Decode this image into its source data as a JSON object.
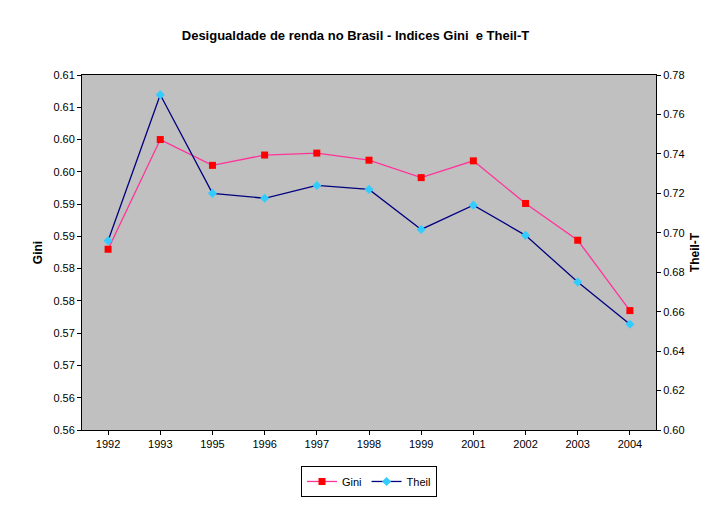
{
  "chart_data": {
    "type": "line",
    "title": "Desigualdade de renda no Brasil - Indices Gini  e Theil-T",
    "categories": [
      "1992",
      "1993",
      "1995",
      "1996",
      "1997",
      "1998",
      "1999",
      "2001",
      "2002",
      "2003",
      "2004"
    ],
    "y_label": "Gini",
    "y2_label": "Theil-T",
    "ylim": [
      0.555,
      0.61
    ],
    "yticks": [
      {
        "value": 0.555,
        "label": "0.56"
      },
      {
        "value": 0.56,
        "label": "0.56"
      },
      {
        "value": 0.565,
        "label": "0.57"
      },
      {
        "value": 0.57,
        "label": "0.57"
      },
      {
        "value": 0.575,
        "label": "0.58"
      },
      {
        "value": 0.58,
        "label": "0.58"
      },
      {
        "value": 0.585,
        "label": "0.59"
      },
      {
        "value": 0.59,
        "label": "0.59"
      },
      {
        "value": 0.595,
        "label": "0.60"
      },
      {
        "value": 0.6,
        "label": "0.60"
      },
      {
        "value": 0.605,
        "label": "0.61"
      },
      {
        "value": 0.61,
        "label": "0.61"
      }
    ],
    "y2lim": [
      0.6,
      0.78
    ],
    "y2ticks": [
      {
        "value": 0.6,
        "label": "0.60"
      },
      0.62,
      0.64,
      0.66,
      0.68,
      {
        "value": 0.7,
        "label": "0.70"
      },
      0.72,
      0.74,
      0.76,
      0.78
    ],
    "grid": false,
    "legend": "bottom",
    "series": [
      {
        "name": "Gini",
        "color": "#ff3399",
        "marker": "square",
        "values": [
          0.583,
          0.6,
          0.596,
          0.5976,
          0.5979,
          0.5968,
          0.5941,
          0.5967,
          0.5901,
          0.5844,
          0.5735
        ]
      },
      {
        "name": "Theil",
        "color": "#000080",
        "marker": "diamond",
        "axis": "y2",
        "values": [
          0.696,
          0.77,
          0.72,
          0.7175,
          0.724,
          0.722,
          0.7017,
          0.714,
          0.6987,
          0.675,
          0.6536
        ]
      }
    ]
  }
}
